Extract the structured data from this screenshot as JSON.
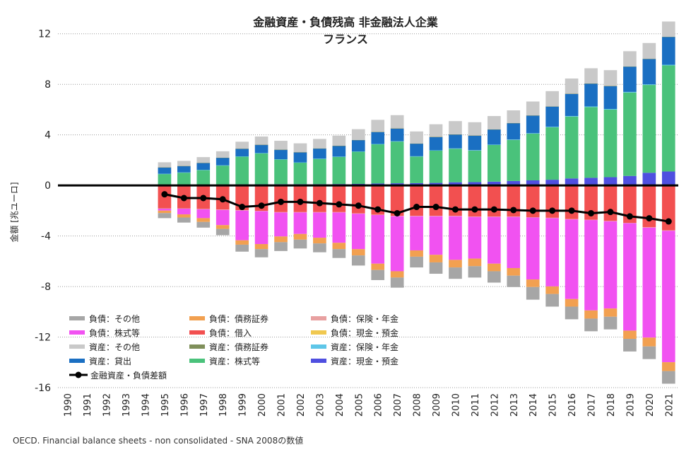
{
  "chart_data": {
    "type": "bar",
    "title": "金融資産・負債残高 非金融法人企業",
    "subtitle": "フランス",
    "ylabel": "金額 [兆ユーロ]",
    "source": "OECD. Financial balance sheets - non consolidated - SNA 2008の数値",
    "ylim": [
      -16,
      14
    ],
    "yticks": [
      12,
      8,
      4,
      0,
      -4,
      -8,
      -12,
      -16
    ],
    "grid": true,
    "legend_position": "bottom-left",
    "categories": [
      "1990",
      "1991",
      "1992",
      "1993",
      "1994",
      "1995",
      "1996",
      "1997",
      "1998",
      "1999",
      "2000",
      "2001",
      "2002",
      "2003",
      "2004",
      "2005",
      "2006",
      "2007",
      "2008",
      "2009",
      "2010",
      "2011",
      "2012",
      "2013",
      "2014",
      "2015",
      "2016",
      "2017",
      "2018",
      "2019",
      "2020",
      "2021"
    ],
    "series": [
      {
        "name": "資産：現金・預金",
        "color": "#4f4fe0",
        "values": [
          null,
          null,
          null,
          null,
          null,
          0.05,
          0.06,
          0.06,
          0.07,
          0.08,
          0.09,
          0.1,
          0.1,
          0.1,
          0.11,
          0.12,
          0.15,
          0.17,
          0.18,
          0.2,
          0.25,
          0.26,
          0.3,
          0.35,
          0.4,
          0.45,
          0.55,
          0.6,
          0.65,
          0.75,
          1.0,
          1.1
        ]
      },
      {
        "name": "資産：株式等",
        "color": "#4ac27b",
        "values": [
          null,
          null,
          null,
          null,
          null,
          0.85,
          0.95,
          1.15,
          1.5,
          2.2,
          2.45,
          1.95,
          1.7,
          2.0,
          2.15,
          2.55,
          3.1,
          3.3,
          2.1,
          2.55,
          2.65,
          2.5,
          2.9,
          3.25,
          3.7,
          4.15,
          4.9,
          5.6,
          5.35,
          6.6,
          6.95,
          8.4
        ]
      },
      {
        "name": "資産：保険・年金",
        "color": "#5ec6e8",
        "values": [
          null,
          null,
          null,
          null,
          null,
          0.02,
          0.02,
          0.02,
          0.02,
          0.02,
          0.02,
          0.02,
          0.02,
          0.02,
          0.02,
          0.02,
          0.03,
          0.03,
          0.03,
          0.03,
          0.03,
          0.03,
          0.03,
          0.03,
          0.03,
          0.04,
          0.04,
          0.05,
          0.05,
          0.05,
          0.05,
          0.05
        ]
      },
      {
        "name": "資産：貸出",
        "color": "#1a6fc2",
        "values": [
          null,
          null,
          null,
          null,
          null,
          0.5,
          0.5,
          0.55,
          0.6,
          0.6,
          0.65,
          0.75,
          0.8,
          0.8,
          0.85,
          0.9,
          0.95,
          1.0,
          1.0,
          1.05,
          1.1,
          1.15,
          1.2,
          1.3,
          1.4,
          1.6,
          1.75,
          1.8,
          1.8,
          2.0,
          2.0,
          2.2
        ]
      },
      {
        "name": "資産：債務証券",
        "color": "#7f8f5a",
        "values": [
          null,
          null,
          null,
          null,
          null,
          0.01,
          0.01,
          0.01,
          0.01,
          0.01,
          0.01,
          0.01,
          0.01,
          0.01,
          0.01,
          0.01,
          0.01,
          0.01,
          0.01,
          0.01,
          0.01,
          0.01,
          0.01,
          0.01,
          0.01,
          0.02,
          0.02,
          0.02,
          0.02,
          0.02,
          0.02,
          0.02
        ]
      },
      {
        "name": "資産：その他",
        "color": "#c9c9c9",
        "values": [
          null,
          null,
          null,
          null,
          null,
          0.4,
          0.4,
          0.45,
          0.5,
          0.55,
          0.65,
          0.7,
          0.7,
          0.75,
          0.8,
          0.85,
          0.95,
          1.05,
          0.95,
          1.0,
          1.05,
          1.05,
          1.05,
          1.0,
          1.1,
          1.2,
          1.2,
          1.2,
          1.25,
          1.2,
          1.25,
          1.2
        ]
      },
      {
        "name": "負債：現金・預金",
        "color": "#f0c850",
        "values": [
          null,
          null,
          null,
          null,
          null,
          -0.01,
          -0.01,
          -0.01,
          -0.01,
          -0.01,
          -0.01,
          -0.01,
          -0.01,
          -0.01,
          -0.01,
          -0.01,
          -0.01,
          -0.01,
          -0.01,
          -0.01,
          -0.01,
          -0.01,
          -0.01,
          -0.01,
          -0.01,
          -0.01,
          -0.01,
          -0.01,
          -0.01,
          -0.01,
          -0.01,
          -0.01
        ]
      },
      {
        "name": "負債：借入",
        "color": "#f25050",
        "values": [
          null,
          null,
          null,
          null,
          null,
          -1.8,
          -1.8,
          -1.85,
          -1.9,
          -1.95,
          -2.0,
          -2.1,
          -2.1,
          -2.1,
          -2.1,
          -2.2,
          -2.3,
          -2.4,
          -2.4,
          -2.4,
          -2.4,
          -2.45,
          -2.45,
          -2.45,
          -2.5,
          -2.55,
          -2.65,
          -2.7,
          -2.8,
          -2.95,
          -3.3,
          -3.55
        ]
      },
      {
        "name": "負債：保険・年金",
        "color": "#e8a0a0",
        "values": [
          null,
          null,
          null,
          null,
          null,
          -0.03,
          -0.03,
          -0.03,
          -0.03,
          -0.03,
          -0.03,
          -0.03,
          -0.03,
          -0.03,
          -0.03,
          -0.03,
          -0.03,
          -0.03,
          -0.03,
          -0.03,
          -0.03,
          -0.03,
          -0.03,
          -0.03,
          -0.03,
          -0.03,
          -0.03,
          -0.03,
          -0.03,
          -0.03,
          -0.03,
          -0.03
        ]
      },
      {
        "name": "負債：株式等",
        "color": "#f152f1",
        "values": [
          null,
          null,
          null,
          null,
          null,
          -0.15,
          -0.45,
          -0.7,
          -1.2,
          -2.35,
          -2.6,
          -1.9,
          -1.7,
          -2.0,
          -2.4,
          -2.8,
          -3.85,
          -4.35,
          -2.7,
          -3.05,
          -3.45,
          -3.3,
          -3.7,
          -4.05,
          -4.9,
          -5.4,
          -6.3,
          -7.15,
          -6.9,
          -8.5,
          -8.7,
          -10.4
        ]
      },
      {
        "name": "負債：債務証券",
        "color": "#f2a050",
        "values": [
          null,
          null,
          null,
          null,
          null,
          -0.2,
          -0.25,
          -0.3,
          -0.3,
          -0.35,
          -0.4,
          -0.45,
          -0.45,
          -0.45,
          -0.5,
          -0.5,
          -0.5,
          -0.5,
          -0.5,
          -0.6,
          -0.6,
          -0.6,
          -0.6,
          -0.6,
          -0.6,
          -0.6,
          -0.6,
          -0.65,
          -0.65,
          -0.65,
          -0.7,
          -0.7
        ]
      },
      {
        "name": "負債：その他",
        "color": "#a6a6a6",
        "values": [
          null,
          null,
          null,
          null,
          null,
          -0.4,
          -0.4,
          -0.45,
          -0.5,
          -0.55,
          -0.65,
          -0.7,
          -0.7,
          -0.7,
          -0.7,
          -0.8,
          -0.8,
          -0.8,
          -0.85,
          -0.9,
          -0.9,
          -0.9,
          -0.9,
          -0.9,
          -1.0,
          -1.0,
          -1.0,
          -1.0,
          -1.0,
          -1.0,
          -1.0,
          -1.0
        ]
      }
    ],
    "line": {
      "name": "金融資産・負債差額",
      "color": "#000000",
      "values": [
        null,
        null,
        null,
        null,
        null,
        -0.7,
        -1.0,
        -1.0,
        -1.1,
        -1.7,
        -1.6,
        -1.3,
        -1.3,
        -1.4,
        -1.5,
        -1.6,
        -1.9,
        -2.2,
        -1.7,
        -1.7,
        -1.9,
        -1.9,
        -1.9,
        -1.95,
        -2.0,
        -2.0,
        -2.0,
        -2.2,
        -2.1,
        -2.45,
        -2.6,
        -2.85
      ]
    },
    "legend_order": [
      "負債：その他",
      "負債：債務証券",
      "負債：保険・年金",
      "負債：株式等",
      "負債：借入",
      "負債：現金・預金",
      "資産：その他",
      "資産：債務証券",
      "資産：保険・年金",
      "資産：貸出",
      "資産：株式等",
      "資産：現金・預金"
    ]
  }
}
